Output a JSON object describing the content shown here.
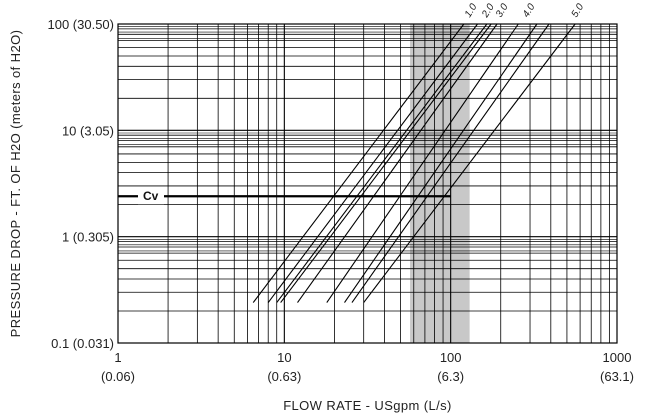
{
  "chart_data": {
    "type": "line",
    "xscale": "log",
    "yscale": "log",
    "xlim": [
      1,
      1000
    ],
    "ylim": [
      0.1,
      100
    ],
    "xlabel": "FLOW RATE - USgpm (L/s)",
    "ylabel": "PRESSURE DROP - FT. OF H2O (meters of H2O)",
    "x_ticks": [
      {
        "value": 1,
        "label": "1",
        "sublabel": "(0.06)"
      },
      {
        "value": 10,
        "label": "10",
        "sublabel": "(0.63)"
      },
      {
        "value": 100,
        "label": "100",
        "sublabel": "(6.3)"
      },
      {
        "value": 1000,
        "label": "1000",
        "sublabel": "(63.1)"
      }
    ],
    "y_ticks": [
      {
        "value": 0.1,
        "label": "0.1 (0.031)"
      },
      {
        "value": 1,
        "label": "1 (0.305)"
      },
      {
        "value": 10,
        "label": "10 (3.05)"
      },
      {
        "value": 100,
        "label": "100 (30.50)"
      }
    ],
    "shaded_band": {
      "x_from": 57,
      "x_to": 130,
      "color": "#c8c8c8"
    },
    "reference_line": {
      "label": "Cv",
      "y": 2.4,
      "x_end": 100
    },
    "series": [
      {
        "x": [
          6.5,
          120
        ],
        "y": [
          0.24,
          100
        ]
      },
      {
        "x": [
          8.0,
          145
        ],
        "y": [
          0.24,
          100
        ]
      },
      {
        "x": [
          9.0,
          165
        ],
        "y": [
          0.24,
          100
        ]
      },
      {
        "x": [
          9.5,
          175
        ],
        "y": [
          0.24,
          100
        ]
      },
      {
        "x": [
          12.0,
          190
        ],
        "y": [
          0.24,
          100
        ]
      },
      {
        "x": [
          18.0,
          255
        ],
        "y": [
          0.24,
          100
        ]
      },
      {
        "x": [
          23.0,
          330
        ],
        "y": [
          0.24,
          100
        ]
      },
      {
        "x": [
          25.5,
          390
        ],
        "y": [
          0.24,
          100
        ]
      },
      {
        "x": [
          30.0,
          560
        ],
        "y": [
          0.24,
          100
        ]
      }
    ],
    "series_labels": [
      {
        "text": "1.0",
        "x": 130
      },
      {
        "text": "2.0",
        "x": 165
      },
      {
        "text": "3.0",
        "x": 200
      },
      {
        "text": "4.0",
        "x": 290
      },
      {
        "text": "5.0",
        "x": 570
      }
    ],
    "grid": true
  }
}
